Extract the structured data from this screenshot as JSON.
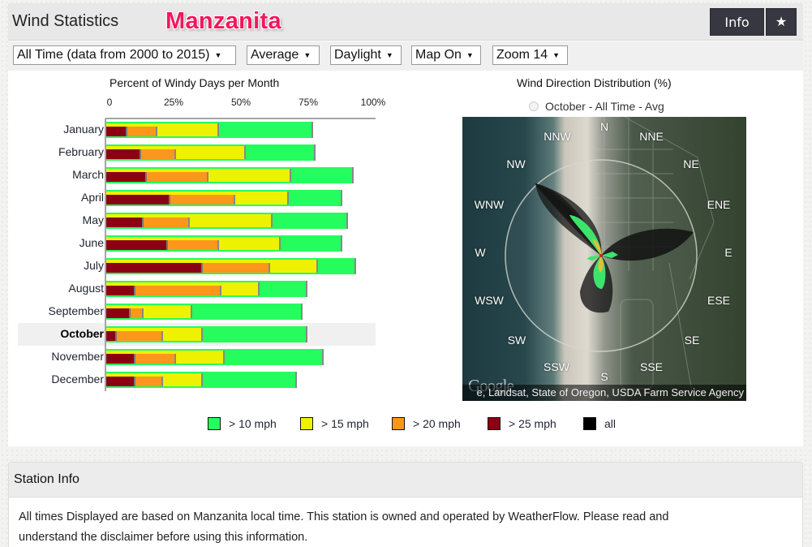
{
  "header": {
    "title": "Wind Statistics",
    "station_name": "Manzanita",
    "info_button": "Info",
    "favorite_button": "★"
  },
  "filters": {
    "time_range": "All Time (data from 2000 to 2015)",
    "statistic": "Average",
    "hours": "Daylight",
    "map": "Map On",
    "zoom": "Zoom 14",
    "caret": "▼"
  },
  "bar_chart": {
    "title": "Percent of Windy Days per Month",
    "ticks": [
      "0",
      "25%",
      "50%",
      "75%",
      "100%"
    ],
    "selected_month": "October"
  },
  "rose_chart": {
    "title": "Wind Direction Distribution (%)",
    "selection_label": "October - All Time - Avg",
    "directions": [
      "N",
      "NNE",
      "NE",
      "ENE",
      "E",
      "ESE",
      "SE",
      "SSE",
      "S",
      "SSW",
      "SW",
      "WSW",
      "W",
      "WNW",
      "NW",
      "NNW"
    ],
    "attribution": "e, Landsat, State of Oregon, USDA Farm Service Agency",
    "logo": "Google"
  },
  "legend": [
    {
      "label": "> 10 mph",
      "color": "#25fd5e"
    },
    {
      "label": "> 15 mph",
      "color": "#eef100"
    },
    {
      "label": "> 20 mph",
      "color": "#fc971c"
    },
    {
      "label": "> 25 mph",
      "color": "#8c0013"
    },
    {
      "label": "all",
      "color": "#000000"
    }
  ],
  "station_info": {
    "title": "Station Info",
    "text_line1": "All times Displayed are based on Manzanita local time. This station is owned and operated by WeatherFlow. Please read and",
    "text_line2": "understand the disclaimer before using this information."
  },
  "chart_data": [
    {
      "type": "bar",
      "orientation": "horizontal",
      "title": "Percent of Windy Days per Month",
      "xlabel": "",
      "ylabel": "",
      "xlim": [
        0,
        100
      ],
      "x_ticks": [
        "0",
        "25%",
        "50%",
        "75%",
        "100%"
      ],
      "categories": [
        "January",
        "February",
        "March",
        "April",
        "May",
        "June",
        "July",
        "August",
        "September",
        "October",
        "November",
        "December"
      ],
      "series": [
        {
          "name": "> 10 mph",
          "color": "#25fd5e",
          "values": [
            77,
            78,
            92,
            88,
            90,
            88,
            93,
            75,
            73,
            75,
            81,
            71
          ]
        },
        {
          "name": "> 15 mph",
          "color": "#eef100",
          "values": [
            42,
            52,
            69,
            68,
            62,
            65,
            79,
            57,
            32,
            36,
            44,
            36
          ]
        },
        {
          "name": "> 20 mph",
          "color": "#fc971c",
          "values": [
            19,
            26,
            38,
            48,
            31,
            42,
            61,
            43,
            14,
            21,
            26,
            21
          ]
        },
        {
          "name": "> 25 mph",
          "color": "#8c0013",
          "values": [
            8,
            13,
            15,
            24,
            14,
            23,
            36,
            11,
            9,
            4,
            11,
            11
          ]
        }
      ],
      "highlighted_category": "October",
      "legend_position": "bottom"
    },
    {
      "type": "other",
      "title": "Wind Direction Distribution (%)",
      "subtitle": "October - All Time - Avg",
      "description": "Wind rose overlay on satellite map; dominant 'all' lobes toward NW, E and S; >10 mph lobes NW and S; small >15/>20 mph near center"
    }
  ]
}
